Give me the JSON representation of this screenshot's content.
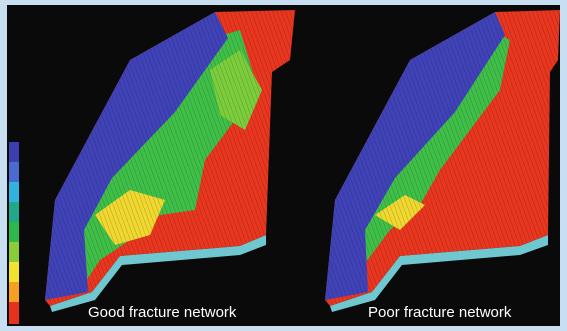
{
  "panels": [
    {
      "caption": "Good fracture network"
    },
    {
      "caption": "Poor fracture network"
    }
  ]
}
